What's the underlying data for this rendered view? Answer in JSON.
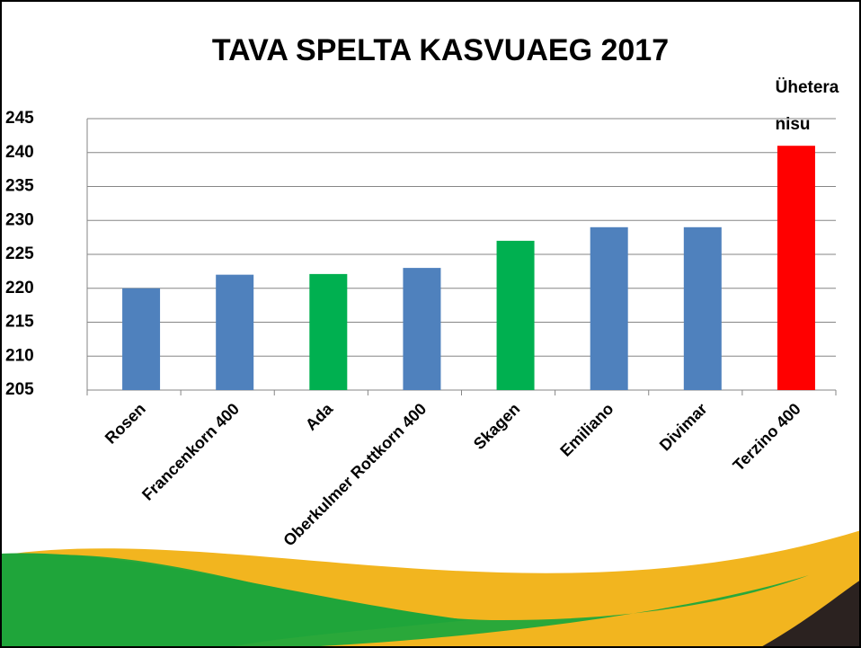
{
  "chart_data": {
    "type": "bar",
    "title": "TAVA SPELTA KASVUAEG  2017",
    "categories": [
      "Rosen",
      "Francenkorn 400",
      "Ada",
      "Oberkulmer Rottkorn 400",
      "Skagen",
      "Emiliano",
      "Divimar",
      "Terzino 400"
    ],
    "values": [
      220,
      222,
      222.1,
      223,
      227,
      229,
      229,
      241
    ],
    "colors": [
      "#4f81bd",
      "#4f81bd",
      "#00b050",
      "#4f81bd",
      "#00b050",
      "#4f81bd",
      "#4f81bd",
      "#ff0000"
    ],
    "annotation": [
      "Ühetera",
      "nisu"
    ],
    "ylim": [
      205,
      245
    ],
    "yticks": [
      205,
      210,
      215,
      220,
      225,
      230,
      235,
      240,
      245
    ],
    "grid": true
  }
}
